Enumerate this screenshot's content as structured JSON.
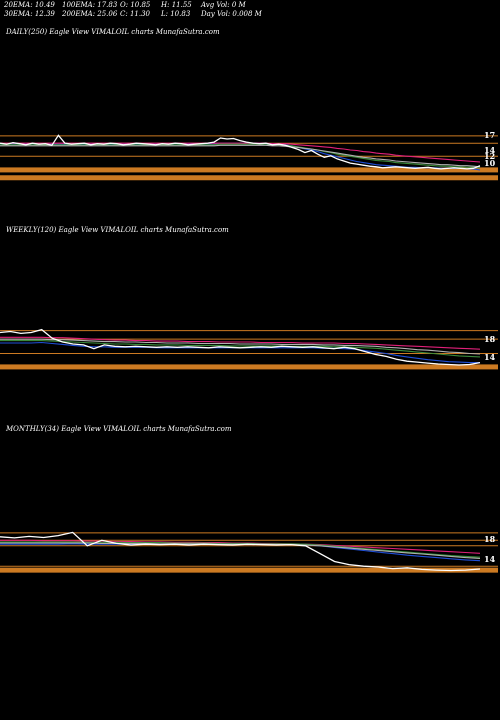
{
  "stats": {
    "ema20": "20EMA: 10.49",
    "ema100": "100EMA: 17.83",
    "open": "O: 10.85",
    "high": "H: 11.55",
    "avg_vol": "Avg Vol: 0  M",
    "ema30": "30EMA: 12.39",
    "ema200": "200EMA: 25.06",
    "close": "C: 11.30",
    "low": "L: 10.83",
    "day_vol": "Day Vol: 0.008 M"
  },
  "colors": {
    "background": "#000000",
    "price": "#ffffff",
    "band": "#cc7a22",
    "ema_blue": "#1f4fd8",
    "ema_magenta": "#e0207a",
    "ema_green": "#3a8a3a",
    "ema_grey": "#b0b0b0"
  },
  "chart_data": [
    {
      "type": "line",
      "title": "DAILY(250) Eagle  View  VIMALOIL  charts MunafaSutra.com",
      "y_tick_labels": [
        "17",
        "14",
        "12",
        "10"
      ],
      "series": [
        {
          "color": "price",
          "values": [
            15.6,
            15.4,
            15.7,
            15.5,
            15.3,
            15.6,
            15.4,
            15.5,
            15.2,
            17.1,
            15.6,
            15.4,
            15.5,
            15.6,
            15.3,
            15.5,
            15.4,
            15.6,
            15.5,
            15.3,
            15.4,
            15.6,
            15.5,
            15.4,
            15.3,
            15.5,
            15.4,
            15.6,
            15.5,
            15.3,
            15.4,
            15.5,
            15.6,
            15.8,
            16.6,
            16.4,
            16.5,
            16.1,
            15.8,
            15.6,
            15.5,
            15.6,
            15.3,
            15.4,
            15.2,
            14.8,
            14.4,
            13.8,
            14.2,
            13.5,
            12.9,
            13.2,
            12.6,
            12.2,
            11.8,
            11.6,
            11.4,
            11.2,
            11.1,
            10.9,
            11.0,
            11.1,
            11.0,
            10.9,
            10.8,
            10.9,
            11.0,
            10.8,
            10.7,
            10.8,
            10.9,
            10.8,
            10.7,
            10.8,
            11.3
          ]
        },
        {
          "color": "ema_blue",
          "values": [
            15.5,
            15.5,
            15.5,
            15.5,
            15.5,
            15.5,
            15.5,
            15.5,
            15.4,
            15.4,
            15.4,
            15.4,
            15.4,
            15.4,
            15.4,
            15.4,
            15.4,
            15.4,
            15.4,
            15.4,
            15.4,
            15.4,
            15.4,
            15.4,
            15.4,
            15.4,
            15.4,
            15.5,
            15.5,
            15.5,
            15.5,
            15.5,
            15.5,
            15.5,
            15.6,
            15.6,
            15.6,
            15.6,
            15.6,
            15.6,
            15.6,
            15.5,
            15.5,
            15.4,
            15.3,
            15.1,
            14.8,
            14.5,
            14.3,
            14.0,
            13.6,
            13.3,
            13.0,
            12.7,
            12.4,
            12.1,
            11.9,
            11.7,
            11.5,
            11.4,
            11.3,
            11.2,
            11.1,
            11.0,
            11.0,
            10.9,
            10.9,
            10.9,
            10.8,
            10.8,
            10.8,
            10.8,
            10.7,
            10.7,
            10.5
          ]
        },
        {
          "color": "ema_magenta",
          "values": [
            15.6,
            15.6,
            15.6,
            15.6,
            15.6,
            15.6,
            15.6,
            15.6,
            15.6,
            15.6,
            15.6,
            15.6,
            15.6,
            15.6,
            15.6,
            15.6,
            15.6,
            15.6,
            15.6,
            15.6,
            15.6,
            15.6,
            15.6,
            15.6,
            15.6,
            15.6,
            15.6,
            15.6,
            15.6,
            15.6,
            15.6,
            15.6,
            15.6,
            15.6,
            15.6,
            15.6,
            15.6,
            15.6,
            15.6,
            15.6,
            15.6,
            15.6,
            15.5,
            15.5,
            15.5,
            15.4,
            15.3,
            15.2,
            15.1,
            15.0,
            14.9,
            14.8,
            14.6,
            14.5,
            14.3,
            14.2,
            14.0,
            13.9,
            13.7,
            13.6,
            13.5,
            13.3,
            13.2,
            13.1,
            13.0,
            12.9,
            12.8,
            12.7,
            12.6,
            12.5,
            12.4,
            12.3,
            12.2,
            12.1,
            12.0
          ]
        },
        {
          "color": "ema_green",
          "values": [
            15.3,
            15.3,
            15.3,
            15.3,
            15.3,
            15.3,
            15.3,
            15.3,
            15.3,
            15.3,
            15.3,
            15.3,
            15.3,
            15.3,
            15.3,
            15.3,
            15.3,
            15.3,
            15.3,
            15.3,
            15.3,
            15.3,
            15.3,
            15.3,
            15.3,
            15.3,
            15.3,
            15.3,
            15.3,
            15.3,
            15.3,
            15.3,
            15.3,
            15.3,
            15.4,
            15.4,
            15.4,
            15.4,
            15.4,
            15.4,
            15.4,
            15.3,
            15.3,
            15.3,
            15.2,
            15.1,
            14.9,
            14.7,
            14.5,
            14.3,
            14.0,
            13.8,
            13.5,
            13.3,
            13.1,
            12.9,
            12.7,
            12.5,
            12.3,
            12.2,
            12.1,
            11.9,
            11.8,
            11.7,
            11.6,
            11.5,
            11.4,
            11.3,
            11.2,
            11.2,
            11.1,
            11.1,
            11.0,
            11.0,
            10.9
          ]
        },
        {
          "color": "ema_grey",
          "values": [
            15.1,
            15.1,
            15.1,
            15.1,
            15.1,
            15.1,
            15.1,
            15.1,
            15.1,
            15.1,
            15.1,
            15.1,
            15.1,
            15.1,
            15.1,
            15.1,
            15.1,
            15.1,
            15.1,
            15.1,
            15.1,
            15.1,
            15.1,
            15.1,
            15.1,
            15.1,
            15.1,
            15.1,
            15.1,
            15.1,
            15.1,
            15.1,
            15.1,
            15.1,
            15.2,
            15.2,
            15.2,
            15.2,
            15.2,
            15.2,
            15.2,
            15.2,
            15.1,
            15.1,
            15.0,
            14.9,
            14.8,
            14.6,
            14.5,
            14.3,
            14.1,
            13.9,
            13.7,
            13.5,
            13.3,
            13.1,
            12.9,
            12.8,
            12.6,
            12.5,
            12.4,
            12.2,
            12.1,
            12.0,
            11.9,
            11.8,
            11.7,
            11.6,
            11.5,
            11.5,
            11.4,
            11.3,
            11.3,
            11.2,
            11.1
          ]
        }
      ],
      "bands": [
        17.0,
        15.6,
        13.1,
        10.5
      ],
      "thick_bands": [
        10.5,
        9.0
      ],
      "ylim": [
        8.0,
        18.5
      ],
      "grid": false
    },
    {
      "type": "line",
      "title": "WEEKLY(120) Eagle  View  VIMALOIL  charts MunafaSutra.com",
      "y_tick_labels": [
        "18",
        "14"
      ],
      "series": [
        {
          "color": "price",
          "values": [
            17.6,
            17.8,
            17.4,
            17.6,
            18.2,
            16.4,
            15.6,
            15.2,
            15.0,
            14.2,
            15.0,
            14.7,
            14.6,
            14.7,
            14.6,
            14.5,
            14.6,
            14.5,
            14.6,
            14.5,
            14.4,
            14.6,
            14.5,
            14.4,
            14.5,
            14.6,
            14.5,
            14.7,
            14.6,
            14.5,
            14.6,
            14.4,
            14.2,
            14.5,
            14.2,
            13.6,
            13.0,
            12.6,
            12.0,
            11.6,
            11.4,
            11.2,
            11.0,
            10.9,
            10.8,
            10.9,
            11.3
          ]
        },
        {
          "color": "ema_blue",
          "values": [
            15.4,
            15.4,
            15.4,
            15.4,
            15.5,
            15.3,
            15.1,
            14.9,
            14.7,
            14.6,
            14.6,
            14.5,
            14.5,
            14.5,
            14.5,
            14.4,
            14.4,
            14.4,
            14.4,
            14.4,
            14.4,
            14.4,
            14.4,
            14.4,
            14.4,
            14.4,
            14.4,
            14.4,
            14.4,
            14.4,
            14.4,
            14.3,
            14.3,
            14.2,
            14.1,
            13.8,
            13.5,
            13.2,
            12.8,
            12.5,
            12.2,
            11.9,
            11.7,
            11.5,
            11.4,
            11.3,
            11.3
          ]
        },
        {
          "color": "ema_magenta",
          "values": [
            16.6,
            16.6,
            16.6,
            16.6,
            16.6,
            16.5,
            16.5,
            16.4,
            16.3,
            16.2,
            16.1,
            16.0,
            16.0,
            15.9,
            15.9,
            15.8,
            15.8,
            15.8,
            15.7,
            15.7,
            15.7,
            15.6,
            15.6,
            15.6,
            15.6,
            15.5,
            15.5,
            15.5,
            15.5,
            15.4,
            15.4,
            15.4,
            15.4,
            15.3,
            15.3,
            15.2,
            15.1,
            15.0,
            14.9,
            14.8,
            14.7,
            14.6,
            14.5,
            14.4,
            14.3,
            14.2,
            14.1
          ]
        },
        {
          "color": "ema_green",
          "values": [
            15.9,
            15.9,
            15.9,
            15.9,
            15.9,
            15.8,
            15.7,
            15.6,
            15.5,
            15.4,
            15.3,
            15.2,
            15.2,
            15.1,
            15.1,
            15.0,
            15.0,
            15.0,
            14.9,
            14.9,
            14.9,
            14.9,
            14.8,
            14.8,
            14.8,
            14.8,
            14.8,
            14.8,
            14.7,
            14.7,
            14.7,
            14.7,
            14.6,
            14.6,
            14.5,
            14.4,
            14.3,
            14.1,
            13.9,
            13.7,
            13.5,
            13.3,
            13.1,
            12.9,
            12.7,
            12.6,
            12.5
          ]
        },
        {
          "color": "ema_grey",
          "values": [
            16.2,
            16.2,
            16.2,
            16.2,
            16.2,
            16.1,
            16.1,
            16.0,
            15.9,
            15.8,
            15.7,
            15.7,
            15.6,
            15.6,
            15.5,
            15.5,
            15.4,
            15.4,
            15.4,
            15.3,
            15.3,
            15.3,
            15.3,
            15.2,
            15.2,
            15.2,
            15.2,
            15.1,
            15.1,
            15.1,
            15.1,
            15.0,
            15.0,
            14.9,
            14.9,
            14.8,
            14.7,
            14.5,
            14.4,
            14.2,
            14.0,
            13.9,
            13.7,
            13.5,
            13.4,
            13.2,
            13.1
          ]
        }
      ],
      "bands": [
        18.0,
        16.2,
        13.2,
        10.5
      ],
      "thick_bands": [
        10.4
      ],
      "ylim": [
        8.5,
        20.0
      ],
      "grid": false
    },
    {
      "type": "line",
      "title": "MONTHLY(34) Eagle  View  VIMALOIL  charts MunafaSutra.com",
      "y_tick_labels": [
        "18",
        "14"
      ],
      "series": [
        {
          "color": "price",
          "values": [
            19.5,
            19.2,
            19.6,
            19.3,
            19.8,
            20.6,
            17.2,
            18.6,
            17.8,
            17.4,
            17.6,
            17.5,
            17.6,
            17.4,
            17.6,
            17.5,
            17.4,
            17.6,
            17.5,
            17.4,
            17.5,
            17.2,
            15.2,
            13.2,
            12.4,
            12.0,
            11.8,
            11.4,
            11.6,
            11.2,
            11.0,
            10.9,
            11.0,
            11.3
          ]
        },
        {
          "color": "ema_blue",
          "values": [
            17.6,
            17.6,
            17.6,
            17.6,
            17.6,
            17.7,
            17.6,
            17.6,
            17.6,
            17.6,
            17.6,
            17.6,
            17.6,
            17.6,
            17.6,
            17.5,
            17.5,
            17.5,
            17.5,
            17.5,
            17.5,
            17.4,
            17.2,
            16.8,
            16.4,
            16.0,
            15.6,
            15.2,
            14.8,
            14.5,
            14.2,
            13.9,
            13.6,
            13.4
          ]
        },
        {
          "color": "ema_magenta",
          "values": [
            18.6,
            18.6,
            18.6,
            18.5,
            18.5,
            18.5,
            18.4,
            18.4,
            18.3,
            18.3,
            18.2,
            18.2,
            18.1,
            18.1,
            18.0,
            18.0,
            17.9,
            17.9,
            17.8,
            17.8,
            17.7,
            17.6,
            17.5,
            17.3,
            17.1,
            16.9,
            16.7,
            16.5,
            16.3,
            16.1,
            15.9,
            15.7,
            15.5,
            15.3
          ]
        },
        {
          "color": "ema_green",
          "values": [
            18.2,
            18.2,
            18.2,
            18.2,
            18.2,
            18.2,
            18.1,
            18.1,
            18.1,
            18.0,
            18.0,
            18.0,
            17.9,
            17.9,
            17.9,
            17.8,
            17.8,
            17.8,
            17.7,
            17.7,
            17.7,
            17.6,
            17.4,
            17.1,
            16.8,
            16.5,
            16.2,
            15.9,
            15.6,
            15.3,
            15.0,
            14.7,
            14.5,
            14.3
          ]
        },
        {
          "color": "ema_grey",
          "values": [
            17.9,
            17.9,
            17.9,
            17.9,
            17.9,
            17.9,
            17.9,
            17.8,
            17.8,
            17.8,
            17.8,
            17.7,
            17.7,
            17.7,
            17.7,
            17.6,
            17.6,
            17.6,
            17.6,
            17.5,
            17.5,
            17.4,
            17.2,
            16.9,
            16.6,
            16.3,
            16.0,
            15.7,
            15.4,
            15.1,
            14.8,
            14.5,
            14.2,
            14.0
          ]
        }
      ],
      "bands": [
        20.5,
        18.6,
        17.2,
        12.0
      ],
      "thick_bands": [
        11.0
      ],
      "ylim": [
        9.0,
        23.0
      ],
      "grid": false
    }
  ]
}
